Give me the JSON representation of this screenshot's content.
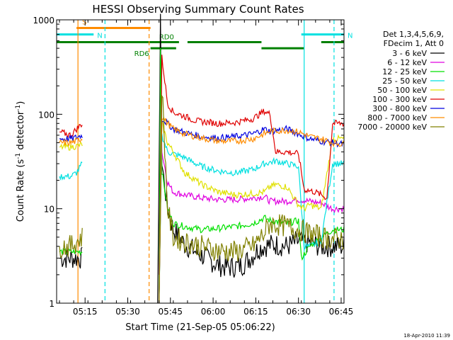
{
  "chart_data": {
    "type": "line",
    "title": "HESSI Observing Summary Count Rates",
    "xlabel": "Start Time (21-Sep-05 05:06:22)",
    "ylabel_main": "Count Rate (s",
    "ylabel_sup1": "-1",
    "ylabel_mid": " detector",
    "ylabel_sup2": "-1",
    "ylabel_end": ")",
    "yscale": "log",
    "ylim": [
      1,
      1000
    ],
    "xlim_minutes": [
      -1,
      100
    ],
    "y_ticks": [
      {
        "value": 1,
        "label": "1"
      },
      {
        "value": 10,
        "label": "10"
      },
      {
        "value": 100,
        "label": "100"
      },
      {
        "value": 1000,
        "label": "1000"
      }
    ],
    "x_ticks": [
      {
        "minute": 9,
        "label": "05:15"
      },
      {
        "minute": 24,
        "label": "05:30"
      },
      {
        "minute": 39,
        "label": "05:45"
      },
      {
        "minute": 54,
        "label": "06:00"
      },
      {
        "minute": 69,
        "label": "06:15"
      },
      {
        "minute": 84,
        "label": "06:30"
      },
      {
        "minute": 99,
        "label": "06:45"
      }
    ],
    "legend": {
      "header1": "Det 1,3,4,5,6,9,",
      "header2": "FDecim 1, Att 0",
      "placement": "right"
    },
    "series": [
      {
        "name": "3 - 6 keV",
        "color": "#000000",
        "x": [
          0,
          4,
          6,
          8,
          12,
          14,
          20,
          30,
          34,
          34.5,
          35.5,
          36,
          38,
          40,
          44,
          50,
          56,
          60,
          64,
          68,
          70,
          72,
          75,
          80,
          84,
          85,
          88,
          92,
          96,
          100
        ],
        "y": [
          3,
          3,
          3,
          3,
          null,
          null,
          null,
          null,
          null,
          1,
          900,
          30,
          10,
          6,
          4.2,
          3.2,
          2.5,
          2.4,
          2.5,
          3.2,
          3.8,
          4.0,
          4.2,
          4.0,
          4.5,
          4.5,
          4.3,
          4.0,
          4.0,
          4.0
        ]
      },
      {
        "name": "6 - 12 keV",
        "color": "#e000e0",
        "x": [
          35,
          35.5,
          36,
          38,
          40,
          44,
          50,
          56,
          62,
          68,
          72,
          74,
          80,
          84,
          88,
          92,
          96,
          100
        ],
        "y": [
          2,
          500,
          40,
          19,
          15,
          14,
          13,
          12.5,
          12.5,
          13,
          13.5,
          12,
          12,
          12.5,
          12,
          11.5,
          10,
          10
        ]
      },
      {
        "name": "12 - 25 keV",
        "color": "#00e000",
        "x": [
          0,
          4,
          6,
          8,
          12,
          14,
          20,
          30,
          34,
          35,
          35.5,
          36,
          38,
          40,
          44,
          50,
          56,
          62,
          68,
          72,
          74,
          80,
          84,
          85,
          88,
          92,
          96,
          100
        ],
        "y": [
          3.5,
          3.5,
          3.5,
          3.5,
          null,
          null,
          null,
          null,
          null,
          1,
          500,
          25,
          10,
          7,
          6.5,
          6.0,
          6.2,
          6.5,
          7.0,
          8.0,
          7.5,
          7.0,
          7.5,
          3,
          4,
          5,
          6,
          6
        ]
      },
      {
        "name": "25 - 50 keV",
        "color": "#00e0e0",
        "x": [
          0,
          4,
          6,
          8,
          12,
          14,
          20,
          30,
          34,
          35,
          36,
          38,
          40,
          44,
          46,
          50,
          56,
          62,
          68,
          72,
          74,
          76,
          80,
          84,
          86,
          88,
          92,
          96,
          100
        ],
        "y": [
          22,
          22,
          24,
          30,
          null,
          null,
          null,
          null,
          null,
          1,
          60,
          40,
          38,
          35,
          32,
          28,
          25,
          24,
          26,
          30,
          31,
          32,
          30,
          28,
          4,
          4,
          4.5,
          30,
          30
        ]
      },
      {
        "name": "50 - 100 keV",
        "color": "#e0e000",
        "x": [
          0,
          4,
          6,
          8,
          12,
          14,
          20,
          30,
          34,
          35,
          36,
          38,
          40,
          44,
          46,
          50,
          56,
          62,
          68,
          72,
          74,
          76,
          80,
          84,
          86,
          88,
          92,
          96,
          100
        ],
        "y": [
          45,
          45,
          46,
          48,
          null,
          null,
          null,
          null,
          null,
          1,
          80,
          50,
          40,
          24,
          22,
          18,
          15,
          14,
          14.5,
          15,
          17,
          18,
          17,
          11,
          10,
          11,
          10,
          55,
          55
        ]
      },
      {
        "name": "100 - 300 keV",
        "color": "#e00000",
        "x": [
          0,
          4,
          6,
          8,
          12,
          14,
          20,
          30,
          34,
          35,
          36,
          38,
          40,
          44,
          46,
          48,
          56,
          62,
          68,
          72,
          74,
          76,
          80,
          84,
          86,
          90,
          94,
          96,
          100
        ],
        "y": [
          65,
          60,
          70,
          80,
          null,
          null,
          null,
          null,
          null,
          1,
          400,
          130,
          105,
          95,
          90,
          85,
          80,
          82,
          90,
          108,
          100,
          40,
          40,
          38,
          16,
          15,
          13,
          80,
          80
        ]
      },
      {
        "name": "300 - 800 keV",
        "color": "#0000e0",
        "x": [
          0,
          4,
          6,
          8,
          12,
          14,
          20,
          30,
          34,
          35,
          36,
          38,
          40,
          44,
          50,
          56,
          62,
          68,
          72,
          74,
          80,
          84,
          88,
          92,
          96,
          100
        ],
        "y": [
          55,
          55,
          57,
          60,
          null,
          null,
          null,
          null,
          null,
          1,
          90,
          80,
          70,
          64,
          58,
          56,
          58,
          62,
          70,
          66,
          70,
          62,
          55,
          52,
          50,
          48
        ]
      },
      {
        "name": "800 - 7000 keV",
        "color": "#ff8c00",
        "x": [
          0,
          4,
          6,
          8,
          12,
          14,
          20,
          30,
          34,
          35,
          36,
          38,
          40,
          44,
          50,
          56,
          62,
          68,
          72,
          74,
          80,
          84,
          88,
          92,
          96,
          100
        ],
        "y": [
          50,
          50,
          52,
          56,
          null,
          null,
          null,
          null,
          null,
          1,
          95,
          80,
          70,
          62,
          56,
          52,
          52,
          55,
          62,
          66,
          68,
          65,
          58,
          55,
          50,
          48
        ]
      },
      {
        "name": "7000 - 20000 keV",
        "color": "#808000",
        "x": [
          0,
          4,
          6,
          8,
          12,
          14,
          20,
          30,
          34,
          35,
          36,
          38,
          40,
          44,
          50,
          56,
          62,
          68,
          72,
          74,
          80,
          84,
          88,
          92,
          96,
          100
        ],
        "y": [
          4,
          4,
          4.5,
          5,
          null,
          null,
          null,
          null,
          null,
          1,
          200,
          10,
          5,
          4.5,
          4.0,
          3.6,
          3.5,
          4.0,
          5.5,
          7.0,
          6.5,
          6.0,
          5.5,
          5.0,
          4.8,
          4.8
        ]
      }
    ],
    "flag_bars": [
      {
        "label": "S",
        "color": "#ff8c00",
        "value": 820,
        "x_start": 6,
        "x_end": 32
      },
      {
        "label": "N",
        "color": "#00e0e0",
        "value": 700,
        "x_start": -1,
        "x_end": 12
      },
      {
        "label": "N",
        "color": "#00e0e0",
        "value": 700,
        "x_start": 85,
        "x_end": 100
      },
      {
        "label": "RD0",
        "color": "#008000",
        "value": 580,
        "x_start": -1,
        "x_end": 42
      },
      {
        "label": "RD6",
        "color": "#008000",
        "value": 500,
        "x_start": 32,
        "x_end": 41
      },
      {
        "label": "",
        "color": "#008000",
        "value": 580,
        "x_start": 45,
        "x_end": 71
      },
      {
        "label": "",
        "color": "#008000",
        "value": 500,
        "x_start": 71,
        "x_end": 86
      },
      {
        "label": "",
        "color": "#008000",
        "value": 580,
        "x_start": 92,
        "x_end": 100
      }
    ],
    "vlines": [
      {
        "minute": 6.5,
        "color": "#ff8c00",
        "style": "solid"
      },
      {
        "minute": 16,
        "color": "#00e0e0",
        "style": "dashed"
      },
      {
        "minute": 31.5,
        "color": "#ff8c00",
        "style": "dashed"
      },
      {
        "minute": 86,
        "color": "#00e0e0",
        "style": "solid"
      },
      {
        "minute": 96.5,
        "color": "#00e0e0",
        "style": "dashed"
      }
    ],
    "timestamp": "18-Apr-2010 11:39"
  }
}
